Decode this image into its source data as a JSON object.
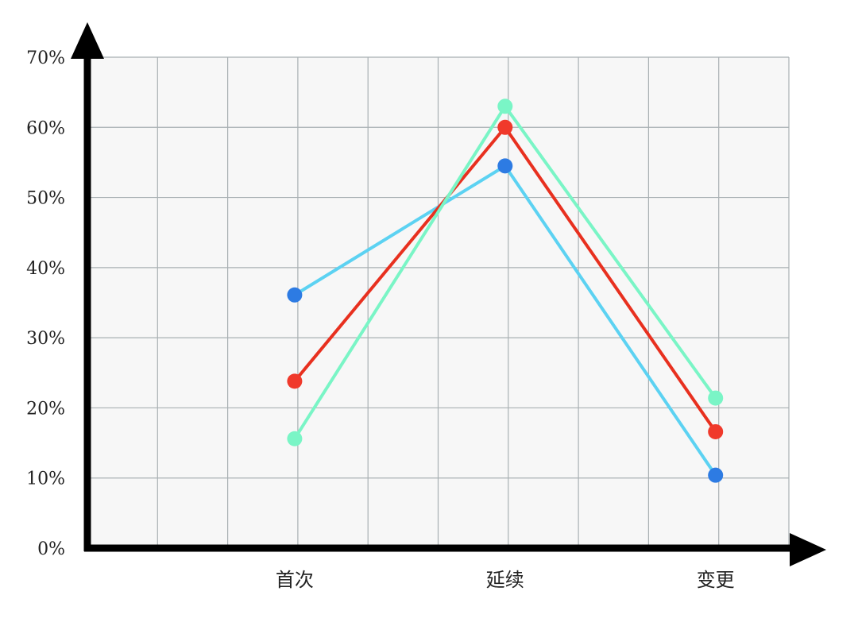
{
  "chart_data": {
    "type": "line",
    "title": "",
    "xlabel": "",
    "ylabel": "",
    "categories": [
      "首次",
      "延续",
      "变更"
    ],
    "ylim": [
      0,
      70
    ],
    "y_unit": "%",
    "y_ticks": [
      "0%",
      "10%",
      "20%",
      "30%",
      "40%",
      "50%",
      "60%",
      "70%"
    ],
    "grid": true,
    "legend": "none",
    "series": [
      {
        "values": [
          36.1,
          54.5,
          10.4
        ],
        "line_color": "#5cd2f2",
        "marker_color": "#2d7be3"
      },
      {
        "values": [
          23.8,
          60.0,
          16.6
        ],
        "line_color": "#e8301f",
        "marker_color": "#f0392b"
      },
      {
        "values": [
          15.6,
          63.0,
          21.4
        ],
        "line_color": "#7af5c6",
        "marker_color": "#7af5c6"
      }
    ]
  }
}
